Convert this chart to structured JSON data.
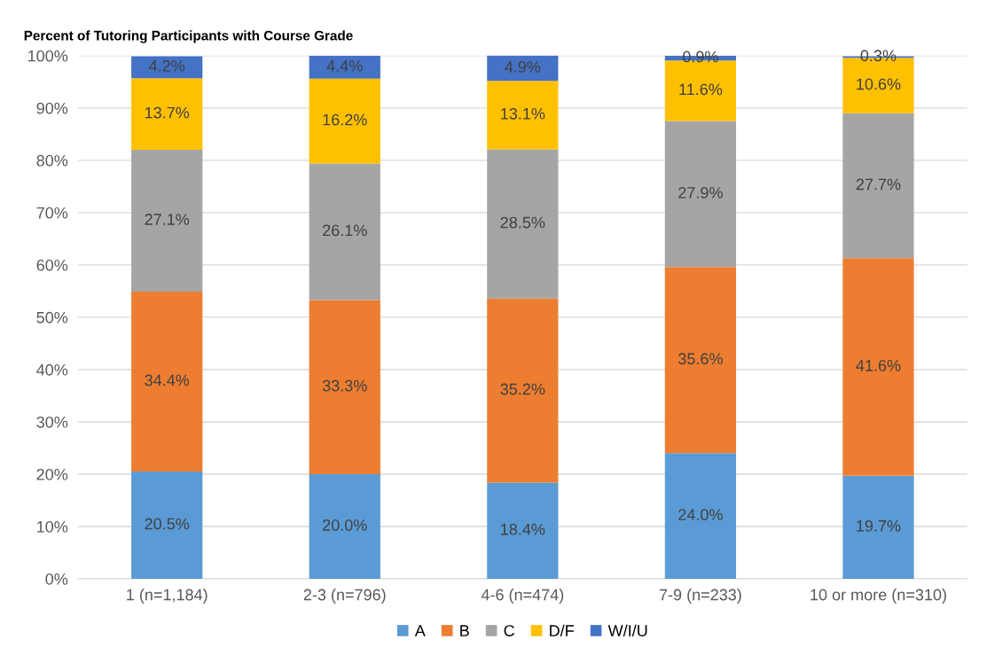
{
  "chart_data": {
    "type": "bar",
    "stacked": true,
    "title": "Percent of Tutoring Participants with Course Grade",
    "categories": [
      "1 (n=1,184)",
      "2-3 (n=796)",
      "4-6 (n=474)",
      "7-9 (n=233)",
      "10 or more (n=310)"
    ],
    "series": [
      {
        "name": "A",
        "color": "#5b9bd5",
        "values": [
          20.5,
          20.0,
          18.4,
          24.0,
          19.7
        ],
        "value_labels": [
          "20.5%",
          "20.0%",
          "18.4%",
          "24.0%",
          "19.7%"
        ]
      },
      {
        "name": "B",
        "color": "#ed7d31",
        "values": [
          34.4,
          33.3,
          35.2,
          35.6,
          41.6
        ],
        "value_labels": [
          "34.4%",
          "33.3%",
          "35.2%",
          "35.6%",
          "41.6%"
        ]
      },
      {
        "name": "C",
        "color": "#a5a5a5",
        "values": [
          27.1,
          26.1,
          28.5,
          27.9,
          27.7
        ],
        "value_labels": [
          "27.1%",
          "26.1%",
          "28.5%",
          "27.9%",
          "27.7%"
        ]
      },
      {
        "name": "D/F",
        "color": "#ffc000",
        "values": [
          13.7,
          16.2,
          13.1,
          11.6,
          10.6
        ],
        "value_labels": [
          "13.7%",
          "16.2%",
          "13.1%",
          "11.6%",
          "10.6%"
        ]
      },
      {
        "name": "W/I/U",
        "color": "#4472c4",
        "values": [
          4.2,
          4.4,
          4.9,
          0.9,
          0.3
        ],
        "value_labels": [
          "4.2%",
          "4.4%",
          "4.9%",
          "0.9%",
          "0.3%"
        ]
      }
    ],
    "ylim": [
      0,
      100
    ],
    "yticks": [
      {
        "value": 0,
        "label": "0%"
      },
      {
        "value": 10,
        "label": "10%"
      },
      {
        "value": 20,
        "label": "20%"
      },
      {
        "value": 30,
        "label": "30%"
      },
      {
        "value": 40,
        "label": "40%"
      },
      {
        "value": 50,
        "label": "50%"
      },
      {
        "value": 60,
        "label": "60%"
      },
      {
        "value": 70,
        "label": "70%"
      },
      {
        "value": 80,
        "label": "80%"
      },
      {
        "value": 90,
        "label": "90%"
      },
      {
        "value": 100,
        "label": "100%"
      }
    ],
    "grid": "y",
    "legend": "bottom"
  }
}
